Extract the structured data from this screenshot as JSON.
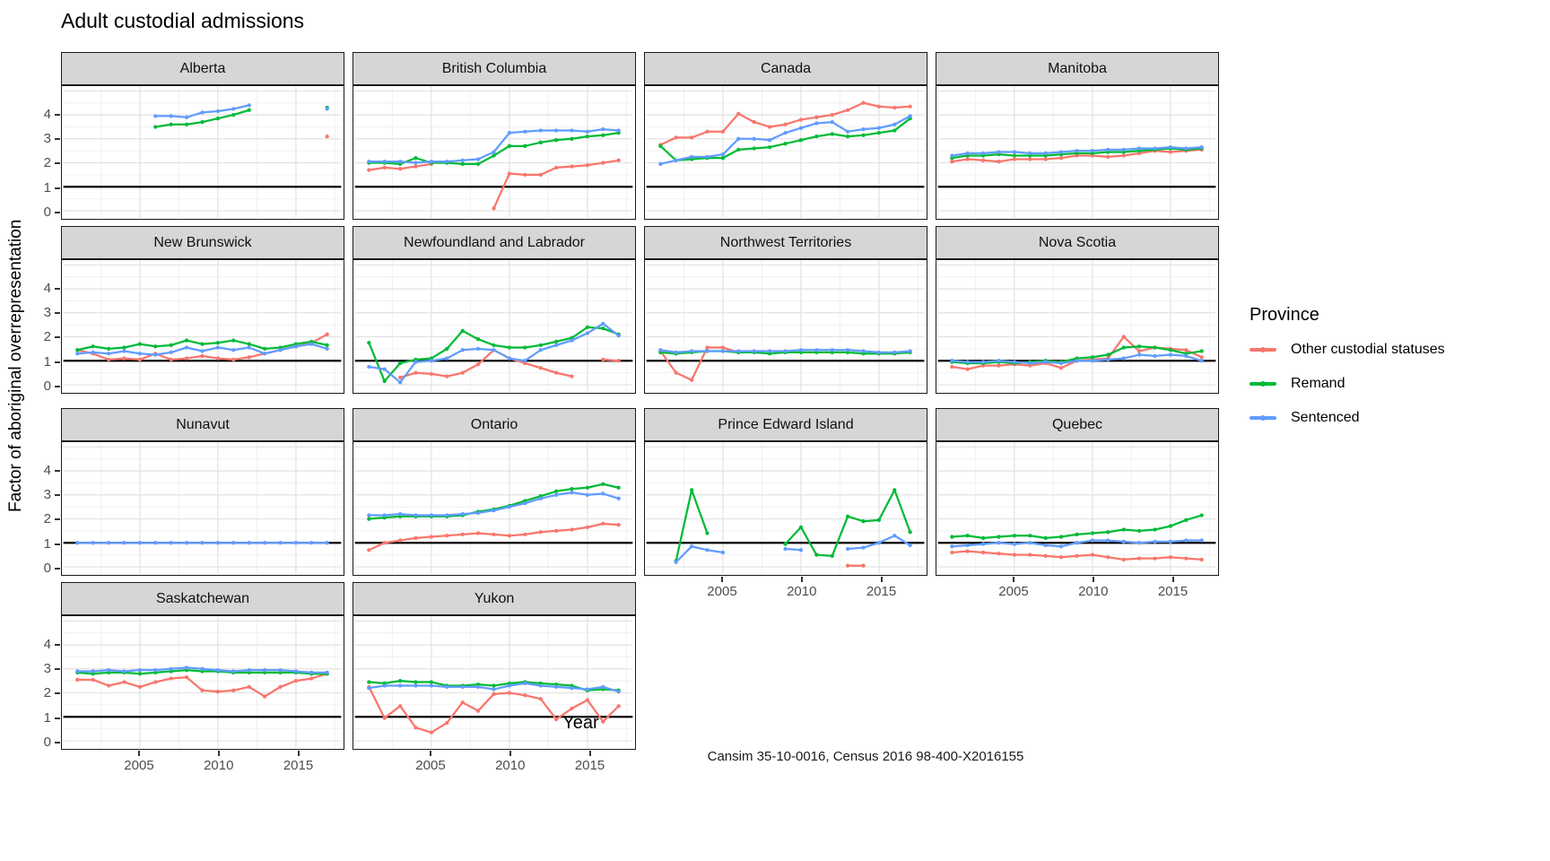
{
  "title": "Adult custodial admissions",
  "caption": "Cansim 35-10-0016, Census 2016 98-400-X2016155",
  "axes": {
    "x_label": "Year",
    "y_label": "Factor of aboriginal overrepresentation",
    "x_ticks": [
      2005,
      2010,
      2015
    ],
    "y_ticks": [
      4,
      3,
      2,
      1,
      0
    ],
    "reference_line_y": 1
  },
  "legend": {
    "title": "Province",
    "items": [
      {
        "name": "other",
        "label": "Other custodial statuses",
        "color": "#F8766D"
      },
      {
        "name": "remand",
        "label": "Remand",
        "color": "#00BA38"
      },
      {
        "name": "sentenced",
        "label": "Sentenced",
        "color": "#619CFF"
      }
    ]
  },
  "chart_data": {
    "type": "line",
    "facet_variable": "Province / jurisdiction",
    "x": [
      2001,
      2002,
      2003,
      2004,
      2005,
      2006,
      2007,
      2008,
      2009,
      2010,
      2011,
      2012,
      2013,
      2014,
      2015,
      2016,
      2017
    ],
    "x_domain": [
      2000.1,
      2017.9
    ],
    "y_domain": [
      -0.3,
      5.2
    ],
    "grid": {
      "major_y": [
        0,
        1,
        2,
        3,
        4,
        5
      ],
      "minor_y": [
        0.5,
        1.5,
        2.5,
        3.5,
        4.5
      ],
      "major_x": [
        2005,
        2010,
        2015
      ],
      "minor_x": [
        2002.5,
        2007.5,
        2012.5,
        2017.5
      ]
    },
    "panels": [
      {
        "title": "Alberta",
        "other": [
          null,
          null,
          null,
          null,
          null,
          null,
          null,
          null,
          null,
          null,
          null,
          null,
          null,
          null,
          null,
          null,
          3.1
        ],
        "remand": [
          null,
          null,
          null,
          null,
          null,
          3.5,
          3.6,
          3.6,
          3.7,
          3.85,
          4.0,
          4.2,
          null,
          null,
          null,
          null,
          4.3
        ],
        "sentenced": [
          null,
          null,
          null,
          null,
          null,
          3.95,
          3.95,
          3.9,
          4.1,
          4.15,
          4.25,
          4.4,
          null,
          null,
          null,
          null,
          4.25
        ]
      },
      {
        "title": "British Columbia",
        "other": [
          1.7,
          1.8,
          1.75,
          1.85,
          1.95,
          null,
          null,
          null,
          0.1,
          1.55,
          1.5,
          1.5,
          1.8,
          1.85,
          1.9,
          2.0,
          2.1
        ],
        "remand": [
          2.0,
          2.0,
          1.95,
          2.2,
          2.0,
          2.0,
          1.95,
          1.95,
          2.3,
          2.7,
          2.7,
          2.85,
          2.95,
          3.0,
          3.1,
          3.15,
          3.25
        ],
        "sentenced": [
          2.05,
          2.05,
          2.05,
          2.0,
          2.05,
          2.05,
          2.1,
          2.15,
          2.45,
          3.25,
          3.3,
          3.35,
          3.35,
          3.35,
          3.3,
          3.4,
          3.35
        ]
      },
      {
        "title": "Canada",
        "other": [
          2.75,
          3.05,
          3.05,
          3.3,
          3.3,
          4.05,
          3.7,
          3.5,
          3.6,
          3.8,
          3.9,
          4.0,
          4.2,
          4.5,
          4.35,
          4.3,
          4.35
        ],
        "remand": [
          2.7,
          2.1,
          2.15,
          2.2,
          2.2,
          2.55,
          2.6,
          2.65,
          2.8,
          2.95,
          3.1,
          3.2,
          3.1,
          3.15,
          3.25,
          3.35,
          3.85
        ],
        "sentenced": [
          1.95,
          2.1,
          2.25,
          2.25,
          2.35,
          3.0,
          3.0,
          2.95,
          3.25,
          3.45,
          3.65,
          3.7,
          3.3,
          3.4,
          3.45,
          3.6,
          3.95
        ]
      },
      {
        "title": "Manitoba",
        "other": [
          2.05,
          2.15,
          2.1,
          2.05,
          2.15,
          2.15,
          2.15,
          2.2,
          2.3,
          2.3,
          2.25,
          2.3,
          2.4,
          2.5,
          2.45,
          2.5,
          2.55
        ],
        "remand": [
          2.2,
          2.3,
          2.3,
          2.35,
          2.3,
          2.3,
          2.3,
          2.35,
          2.4,
          2.4,
          2.45,
          2.45,
          2.5,
          2.55,
          2.6,
          2.55,
          2.6
        ],
        "sentenced": [
          2.3,
          2.4,
          2.4,
          2.45,
          2.45,
          2.4,
          2.4,
          2.45,
          2.5,
          2.5,
          2.55,
          2.55,
          2.6,
          2.6,
          2.65,
          2.6,
          2.65
        ]
      },
      {
        "title": "New Brunswick",
        "other": [
          1.45,
          1.3,
          1.05,
          1.1,
          1.05,
          1.3,
          1.05,
          1.1,
          1.2,
          1.1,
          1.05,
          1.15,
          1.3,
          1.45,
          1.6,
          1.75,
          2.1
        ],
        "remand": [
          1.45,
          1.6,
          1.5,
          1.55,
          1.7,
          1.6,
          1.65,
          1.85,
          1.7,
          1.75,
          1.85,
          1.7,
          1.5,
          1.55,
          1.7,
          1.8,
          1.65
        ],
        "sentenced": [
          1.3,
          1.35,
          1.3,
          1.4,
          1.3,
          1.25,
          1.35,
          1.55,
          1.4,
          1.55,
          1.45,
          1.55,
          1.3,
          1.45,
          1.6,
          1.7,
          1.5
        ]
      },
      {
        "title": "Newfoundland and Labrador",
        "other": [
          null,
          null,
          0.3,
          0.5,
          0.45,
          0.35,
          0.5,
          0.85,
          1.45,
          1.1,
          0.9,
          0.7,
          0.5,
          0.35,
          null,
          1.05,
          1.0
        ],
        "remand": [
          1.75,
          0.15,
          0.9,
          1.05,
          1.1,
          1.5,
          2.25,
          1.9,
          1.65,
          1.55,
          1.55,
          1.65,
          1.8,
          1.95,
          2.4,
          2.35,
          2.1
        ],
        "sentenced": [
          0.75,
          0.65,
          0.1,
          0.95,
          1.0,
          1.1,
          1.45,
          1.5,
          1.45,
          1.1,
          1.0,
          1.45,
          1.65,
          1.85,
          2.15,
          2.55,
          2.05
        ]
      },
      {
        "title": "Northwest Territories",
        "other": [
          1.4,
          0.5,
          0.2,
          1.55,
          1.55,
          1.35,
          null,
          null,
          null,
          null,
          null,
          null,
          null,
          null,
          null,
          null,
          null
        ],
        "remand": [
          1.35,
          1.3,
          1.35,
          1.4,
          1.4,
          1.35,
          1.35,
          1.3,
          1.35,
          1.35,
          1.35,
          1.35,
          1.35,
          1.3,
          1.3,
          1.3,
          1.35
        ],
        "sentenced": [
          1.45,
          1.35,
          1.4,
          1.4,
          1.4,
          1.4,
          1.4,
          1.4,
          1.4,
          1.45,
          1.45,
          1.45,
          1.45,
          1.4,
          1.35,
          1.35,
          1.4
        ]
      },
      {
        "title": "Nova Scotia",
        "other": [
          0.75,
          0.65,
          0.8,
          0.8,
          0.85,
          0.8,
          0.9,
          0.7,
          1.0,
          1.05,
          1.1,
          2.0,
          1.4,
          1.55,
          1.5,
          1.45,
          1.15
        ],
        "remand": [
          0.95,
          0.9,
          0.9,
          0.95,
          0.9,
          0.95,
          1.0,
          0.95,
          1.1,
          1.15,
          1.25,
          1.55,
          1.6,
          1.55,
          1.45,
          1.3,
          1.4
        ],
        "sentenced": [
          1.0,
          0.95,
          0.95,
          1.0,
          0.95,
          0.9,
          0.95,
          0.9,
          1.0,
          1.0,
          1.05,
          1.1,
          1.25,
          1.2,
          1.25,
          1.2,
          1.0
        ]
      },
      {
        "title": "Nunavut",
        "other": [
          null,
          null,
          null,
          null,
          null,
          null,
          null,
          null,
          null,
          null,
          null,
          null,
          null,
          null,
          null,
          null,
          null
        ],
        "remand": [
          null,
          null,
          null,
          null,
          null,
          null,
          null,
          null,
          null,
          null,
          null,
          null,
          null,
          null,
          null,
          null,
          null
        ],
        "sentenced": [
          1.0,
          1.0,
          1.0,
          1.0,
          1.0,
          1.0,
          1.0,
          1.0,
          1.0,
          1.0,
          1.0,
          1.0,
          1.0,
          1.0,
          1.0,
          1.0,
          1.0
        ]
      },
      {
        "title": "Ontario",
        "other": [
          0.7,
          1.0,
          1.1,
          1.2,
          1.25,
          1.3,
          1.35,
          1.4,
          1.35,
          1.3,
          1.35,
          1.45,
          1.5,
          1.55,
          1.65,
          1.8,
          1.75
        ],
        "remand": [
          2.0,
          2.05,
          2.1,
          2.1,
          2.1,
          2.1,
          2.15,
          2.3,
          2.4,
          2.55,
          2.75,
          2.95,
          3.15,
          3.25,
          3.3,
          3.45,
          3.3
        ],
        "sentenced": [
          2.15,
          2.15,
          2.2,
          2.15,
          2.15,
          2.15,
          2.2,
          2.25,
          2.35,
          2.5,
          2.65,
          2.85,
          3.0,
          3.1,
          3.0,
          3.05,
          2.85
        ]
      },
      {
        "title": "Prince Edward Island",
        "other": [
          null,
          null,
          null,
          null,
          null,
          null,
          null,
          null,
          null,
          null,
          null,
          null,
          0.05,
          0.05,
          null,
          null,
          null
        ],
        "remand": [
          null,
          0.25,
          3.2,
          1.4,
          null,
          null,
          null,
          null,
          0.95,
          1.65,
          0.5,
          0.45,
          2.1,
          1.9,
          1.95,
          3.2,
          1.45
        ],
        "sentenced": [
          null,
          0.2,
          0.85,
          0.7,
          0.6,
          null,
          null,
          null,
          0.75,
          0.7,
          null,
          null,
          0.75,
          0.8,
          1.0,
          1.3,
          0.9
        ]
      },
      {
        "title": "Quebec",
        "other": [
          0.6,
          0.65,
          0.6,
          0.55,
          0.5,
          0.5,
          0.45,
          0.4,
          0.45,
          0.5,
          0.4,
          0.3,
          0.35,
          0.35,
          0.4,
          0.35,
          0.3
        ],
        "remand": [
          1.25,
          1.3,
          1.2,
          1.25,
          1.3,
          1.3,
          1.2,
          1.25,
          1.35,
          1.4,
          1.45,
          1.55,
          1.5,
          1.55,
          1.7,
          1.95,
          2.15
        ],
        "sentenced": [
          0.85,
          0.9,
          0.95,
          1.0,
          0.95,
          1.0,
          0.9,
          0.85,
          1.0,
          1.1,
          1.1,
          1.05,
          1.0,
          1.05,
          1.05,
          1.1,
          1.1
        ]
      },
      {
        "title": "Saskatchewan",
        "other": [
          2.55,
          2.55,
          2.3,
          2.45,
          2.25,
          2.45,
          2.6,
          2.65,
          2.1,
          2.05,
          2.1,
          2.25,
          1.85,
          2.25,
          2.5,
          2.6,
          2.8
        ],
        "remand": [
          2.85,
          2.8,
          2.85,
          2.85,
          2.8,
          2.85,
          2.9,
          2.95,
          2.9,
          2.9,
          2.85,
          2.85,
          2.85,
          2.85,
          2.85,
          2.8,
          2.8
        ],
        "sentenced": [
          2.9,
          2.9,
          2.95,
          2.9,
          2.95,
          2.95,
          3.0,
          3.05,
          3.0,
          2.95,
          2.9,
          2.95,
          2.95,
          2.95,
          2.9,
          2.85,
          2.85
        ]
      },
      {
        "title": "Yukon",
        "other": [
          2.25,
          0.95,
          1.45,
          0.55,
          0.35,
          0.75,
          1.6,
          1.25,
          1.95,
          2.0,
          1.9,
          1.75,
          0.9,
          1.35,
          1.7,
          0.8,
          1.45
        ],
        "remand": [
          2.45,
          2.4,
          2.5,
          2.45,
          2.45,
          2.3,
          2.3,
          2.35,
          2.3,
          2.4,
          2.45,
          2.4,
          2.35,
          2.3,
          2.1,
          2.15,
          2.1
        ],
        "sentenced": [
          2.2,
          2.3,
          2.3,
          2.3,
          2.3,
          2.25,
          2.25,
          2.25,
          2.15,
          2.3,
          2.4,
          2.3,
          2.25,
          2.2,
          2.15,
          2.25,
          2.05
        ]
      }
    ]
  },
  "style_colors": {
    "strip_bg": "#d6d6d6",
    "panel_border": "#1a1a1a",
    "grid_major": "#e3e3e3",
    "grid_minor": "#f1f1f1",
    "reference_line": "#000000",
    "tick_text": "#4d4d4d"
  }
}
